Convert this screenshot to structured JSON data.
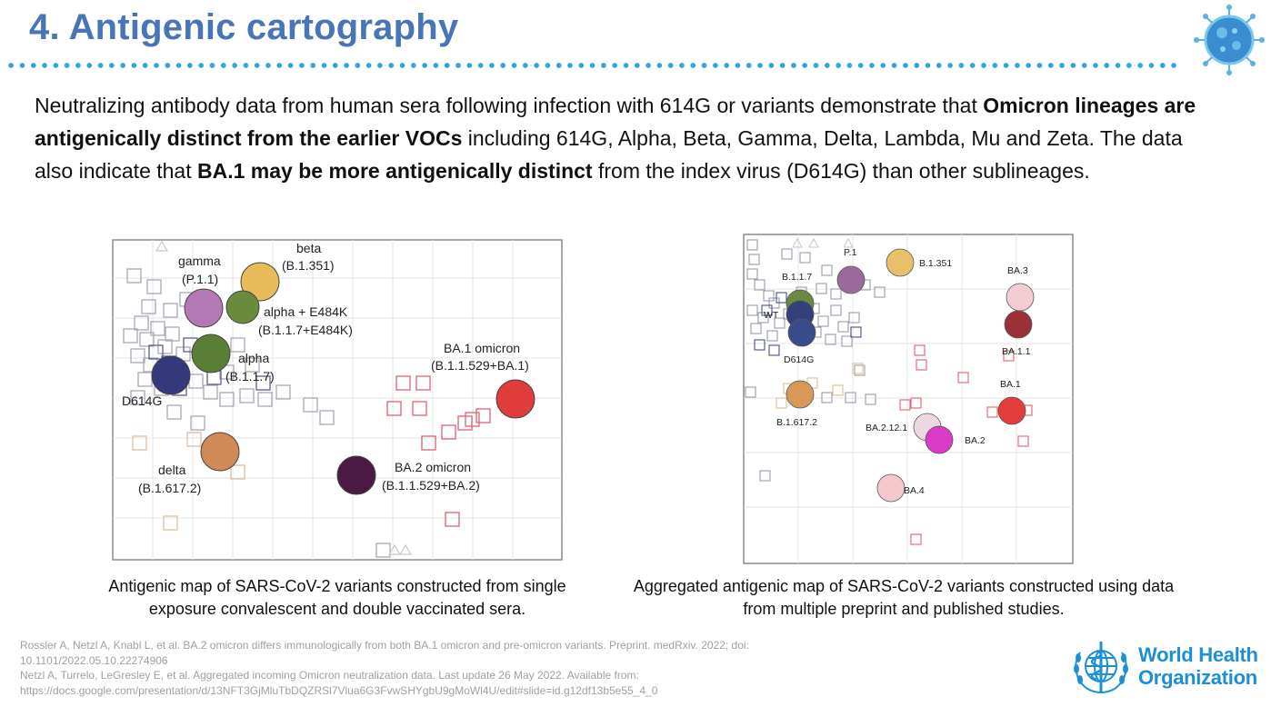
{
  "slide": {
    "title": "4. Antigenic cartography"
  },
  "intro": {
    "part1": "Neutralizing antibody data from human sera following infection with 614G or variants demonstrate that ",
    "bold1": "Omicron lineages are antigenically distinct from the earlier VOCs",
    "part2": " including 614G, Alpha, Beta, Gamma, Delta, Lambda, Mu and Zeta. The data also indicate that ",
    "bold2": "BA.1 may be more antigenically distinct",
    "part3": " from the index virus (D614G) than other sublineages."
  },
  "map_left": {
    "labels": {
      "beta_1": "beta",
      "beta_2": "(B.1.351)",
      "gamma_1": "gamma",
      "gamma_2": "(P.1.1)",
      "alpha_e484k_1": "alpha + E484K",
      "alpha_e484k_2": "(B.1.1.7+E484K)",
      "alpha_1": "alpha",
      "alpha_2": "(B.1.1.7)",
      "d614g": "D614G",
      "delta_1": "delta",
      "delta_2": "(B.1.617.2)",
      "ba1_1": "BA.1 omicron",
      "ba1_2": "(B.1.1.529+BA.1)",
      "ba2_1": "BA.2 omicron",
      "ba2_2": "(B.1.1.529+BA.2)"
    },
    "colors": {
      "beta": "#e8bc5a",
      "gamma": "#b478b4",
      "alpha_e484k": "#6a8a3c",
      "alpha": "#5a7e36",
      "d614g": "#33397a",
      "delta": "#d08a58",
      "ba1": "#e03c3c",
      "ba2": "#4a1a44"
    }
  },
  "map_right": {
    "labels": {
      "p1": "P.1",
      "b1351": "B.1.351",
      "b117": "B.1.1.7",
      "wt": "WT",
      "d614g": "D614G",
      "b16172": "B.1.617.2",
      "ba3": "BA.3",
      "ba11": "BA.1.1",
      "ba1": "BA.1",
      "ba2121": "BA.2.12.1",
      "ba2": "BA.2",
      "ba4": "BA.4"
    },
    "colors": {
      "p1": "#9a6a9a",
      "b1351": "#e8c068",
      "b117": "#6a8a44",
      "wt": "#34407a",
      "d614g": "#3a4c8a",
      "b16172": "#d89858",
      "ba3": "#f4cdd4",
      "ba11": "#9a3038",
      "ba1": "#e23c3c",
      "ba2121": "#ecd8e0",
      "ba2": "#da3ac8",
      "ba4": "#f4c8cc"
    }
  },
  "captions": {
    "left": "Antigenic map of SARS-CoV-2 variants constructed from single exposure convalescent and double vaccinated sera.",
    "right": "Aggregated antigenic map of SARS-CoV-2 variants constructed using data from multiple preprint and published studies."
  },
  "references": {
    "ref1_line1": "Rossler A, Netzl A, Knabl L, et al. BA.2 omicron differs immunologically from both BA.1 omicron and pre-omicron variants. Preprint. medRxiv. 2022; doi:",
    "ref1_line2": "10.1101/2022.05.10.22274906",
    "ref2_line1": "Netzl A, Turrelo, LeGresley E, et al. Aggregated incoming Omicron neutralization data. Last update 26 May 2022. Available from:",
    "ref2_line2": "https://docs.google.com/presentation/d/13NFT3GjMluTbDQZRSl7Vlua6G3FvwSHYgbU9gMoWl4U/edit#slide=id.g12df13b5e55_4_0"
  },
  "logo": {
    "line1": "World Health",
    "line2": "Organization"
  },
  "theme": {
    "title_color": "#4a74b8",
    "rule_color": "#2aa6de",
    "who_blue": "#1b8fd8"
  }
}
